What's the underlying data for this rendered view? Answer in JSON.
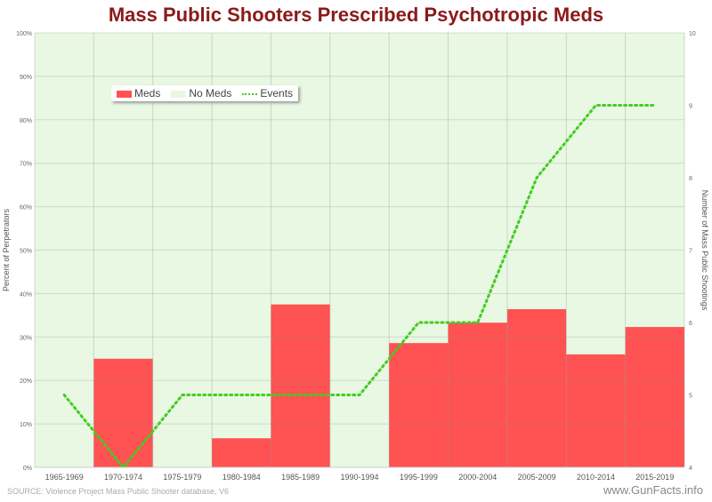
{
  "chart_data": {
    "type": "bar",
    "title": "Mass Public Shooters Prescribed Psychotropic Meds",
    "categories": [
      "1965-1969",
      "1970-1974",
      "1975-1979",
      "1980-1984",
      "1985-1989",
      "1990-1994",
      "1995-1999",
      "2000-2004",
      "2005-2009",
      "2010-2014",
      "2015-2019"
    ],
    "series": [
      {
        "name": "Meds",
        "type": "stacked-bar",
        "axis": "left",
        "values": [
          0,
          25,
          0,
          6.7,
          37.5,
          0,
          28.6,
          33.3,
          36.4,
          26,
          32.3
        ]
      },
      {
        "name": "No Meds",
        "type": "stacked-bar",
        "axis": "left",
        "values": [
          100,
          75,
          100,
          93.3,
          62.5,
          100,
          71.4,
          66.7,
          63.6,
          74,
          67.7
        ]
      },
      {
        "name": "Events",
        "type": "line",
        "axis": "right",
        "values": [
          5,
          4,
          5,
          5,
          5,
          5,
          6,
          6,
          8,
          9,
          9
        ]
      }
    ],
    "ylabel": "Percent of Perpetrators",
    "ylim": [
      0,
      100
    ],
    "y_ticks": [
      "0%",
      "10%",
      "20%",
      "30%",
      "40%",
      "50%",
      "60%",
      "70%",
      "80%",
      "90%",
      "100%"
    ],
    "y2label": "Number of Mass Public Shootings",
    "y2lim": [
      4,
      10
    ],
    "y2_ticks": [
      "4",
      "5",
      "6",
      "7",
      "8",
      "9",
      "10"
    ],
    "legend": {
      "placement": "top-left",
      "items": [
        "Meds",
        "No Meds",
        "Events"
      ]
    },
    "colors": {
      "Meds": "#ff5252",
      "No Meds": "#e8f8e2",
      "Events": "#44cc22"
    },
    "grid": true
  },
  "source": "SOURCE: Violence Project Mass Public Shooter database, V6",
  "brand": "www.GunFacts.info"
}
